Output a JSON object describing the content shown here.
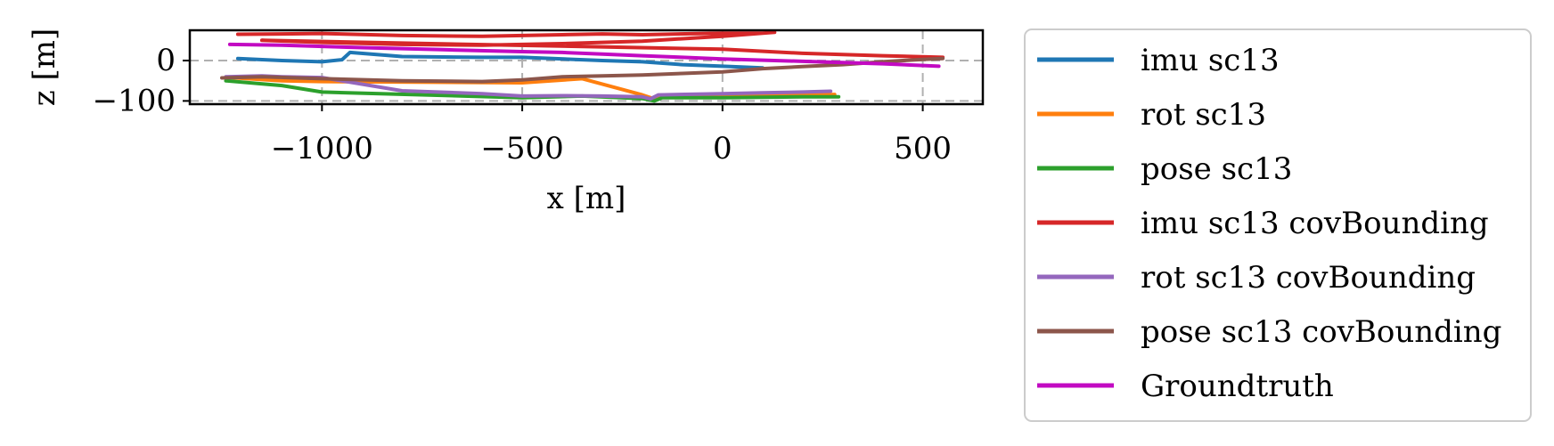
{
  "chart_data": {
    "type": "line",
    "xlabel": "x [m]",
    "ylabel": "z [m]",
    "xlim": [
      -1330,
      650
    ],
    "ylim": [
      -108,
      75
    ],
    "x_ticks": [
      -1000,
      -500,
      0,
      500
    ],
    "x_tick_labels": [
      "−1000",
      "−500",
      "0",
      "500"
    ],
    "y_ticks": [
      0,
      -100
    ],
    "y_tick_labels": [
      "0",
      "−100"
    ],
    "grid": true,
    "legend_position": "outside-right",
    "series": [
      {
        "name": "imu sc13",
        "color": "#1f77b4",
        "x": [
          -1210,
          -1100,
          -1000,
          -950,
          -930,
          -800,
          -600,
          -500,
          -300,
          -200,
          -100,
          0,
          100
        ],
        "y": [
          5,
          0,
          -3,
          2,
          20,
          10,
          8,
          8,
          0,
          -3,
          -10,
          -14,
          -18
        ]
      },
      {
        "name": "rot sc13",
        "color": "#ff7f0e",
        "x": [
          -1230,
          -1100,
          -1000,
          -500,
          -350,
          -200,
          -170,
          -150,
          0,
          100,
          200,
          280
        ],
        "y": [
          -42,
          -50,
          -52,
          -55,
          -45,
          -85,
          -95,
          -88,
          -88,
          -87,
          -86,
          -84
        ]
      },
      {
        "name": "pose sc13",
        "color": "#2ca02c",
        "x": [
          -1240,
          -1100,
          -1000,
          -500,
          -350,
          -200,
          -170,
          -150,
          0,
          100,
          200,
          290
        ],
        "y": [
          -50,
          -62,
          -78,
          -92,
          -88,
          -94,
          -100,
          -92,
          -92,
          -91,
          -90,
          -90
        ]
      },
      {
        "name": "imu sc13 covBounding",
        "color": "#d62728",
        "x": [
          -1210,
          -1100,
          -1000,
          -800,
          -600,
          -500,
          -400,
          -300,
          -200,
          0,
          100,
          130,
          0,
          -200,
          -400,
          -600,
          -800,
          -1000,
          -1150,
          0,
          200,
          400,
          550
        ],
        "y": [
          65,
          66,
          67,
          62,
          60,
          62,
          64,
          66,
          64,
          68,
          68,
          70,
          60,
          48,
          42,
          38,
          40,
          45,
          50,
          28,
          18,
          12,
          8
        ]
      },
      {
        "name": "rot sc13 covBounding",
        "color": "#9467bd",
        "x": [
          -1240,
          -1150,
          -1100,
          -1000,
          -800,
          -600,
          -500,
          -400,
          -300,
          -200,
          -180,
          -160,
          0,
          100,
          200,
          270
        ],
        "y": [
          -40,
          -38,
          -40,
          -42,
          -75,
          -82,
          -88,
          -87,
          -88,
          -90,
          -95,
          -85,
          -82,
          -80,
          -78,
          -76
        ]
      },
      {
        "name": "pose sc13 covBounding",
        "color": "#8c564b",
        "x": [
          -1250,
          -1150,
          -1000,
          -800,
          -600,
          -500,
          -400,
          -300,
          -200,
          -100,
          0,
          100,
          200,
          300,
          400,
          500,
          550
        ],
        "y": [
          -43,
          -40,
          -45,
          -50,
          -52,
          -48,
          -40,
          -38,
          -36,
          -32,
          -28,
          -20,
          -15,
          -10,
          -3,
          3,
          5
        ]
      },
      {
        "name": "Groundtruth",
        "color": "#c20ac2",
        "x": [
          -1230,
          -1100,
          -1000,
          -900,
          -700,
          -500,
          -400,
          -300,
          -200,
          -100,
          0,
          200,
          400,
          540
        ],
        "y": [
          40,
          38,
          35,
          32,
          27,
          22,
          20,
          16,
          12,
          8,
          4,
          -2,
          -8,
          -14
        ]
      }
    ]
  }
}
